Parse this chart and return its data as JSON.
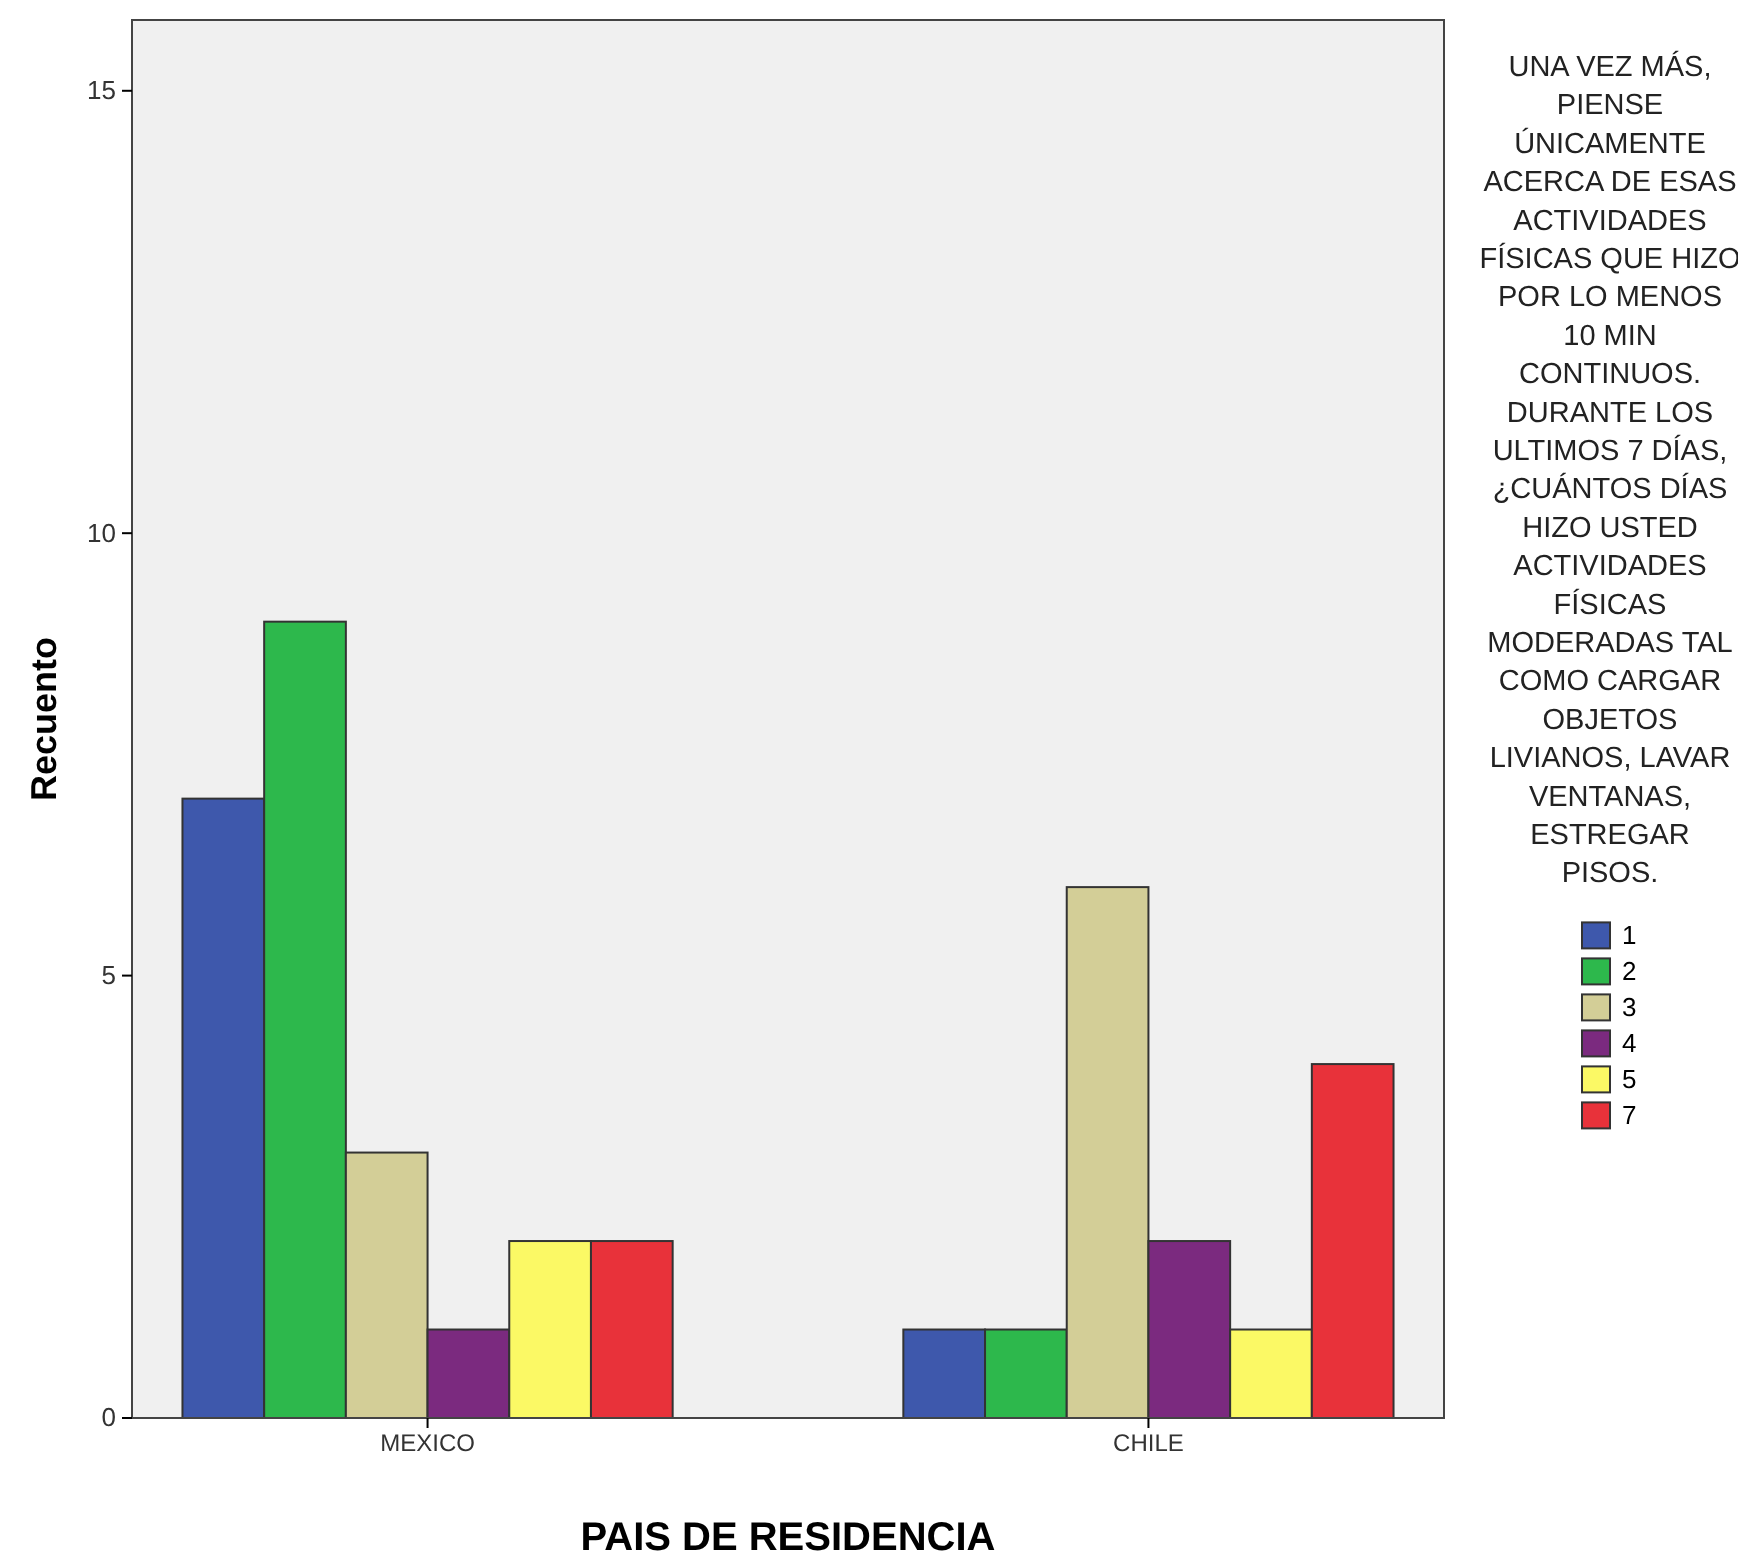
{
  "chart_data": {
    "type": "bar",
    "xlabel": "PAIS DE RESIDENCIA",
    "ylabel": "Recuento",
    "legend_title": "UNA VEZ MÁS, PIENSE ÚNICAMENTE ACERCA DE ESAS ACTIVIDADES FÍSICAS QUE HIZO POR LO MENOS 10 MIN CONTINUOS. DURANTE LOS ULTIMOS 7 DÍAS, ¿CUÁNTOS DÍAS HIZO USTED ACTIVIDADES FÍSICAS MODERADAS TAL COMO CARGAR OBJETOS LIVIANOS, LAVAR VENTANAS, ESTREGAR PISOS.",
    "categories": [
      "MEXICO",
      "CHILE"
    ],
    "series": [
      {
        "name": "1",
        "color": "#3e58ac",
        "values": [
          7,
          1
        ]
      },
      {
        "name": "2",
        "color": "#2db84c",
        "values": [
          9,
          1
        ]
      },
      {
        "name": "3",
        "color": "#d3ce97",
        "values": [
          3,
          6
        ]
      },
      {
        "name": "4",
        "color": "#7b2a7f",
        "values": [
          1,
          2
        ]
      },
      {
        "name": "5",
        "color": "#fbf965",
        "values": [
          2,
          1
        ]
      },
      {
        "name": "7",
        "color": "#e8323a",
        "values": [
          2,
          4
        ]
      }
    ],
    "ylim": [
      0,
      15.8
    ],
    "yticks": [
      0,
      5,
      10,
      15
    ],
    "grid": false,
    "legend": "right"
  }
}
